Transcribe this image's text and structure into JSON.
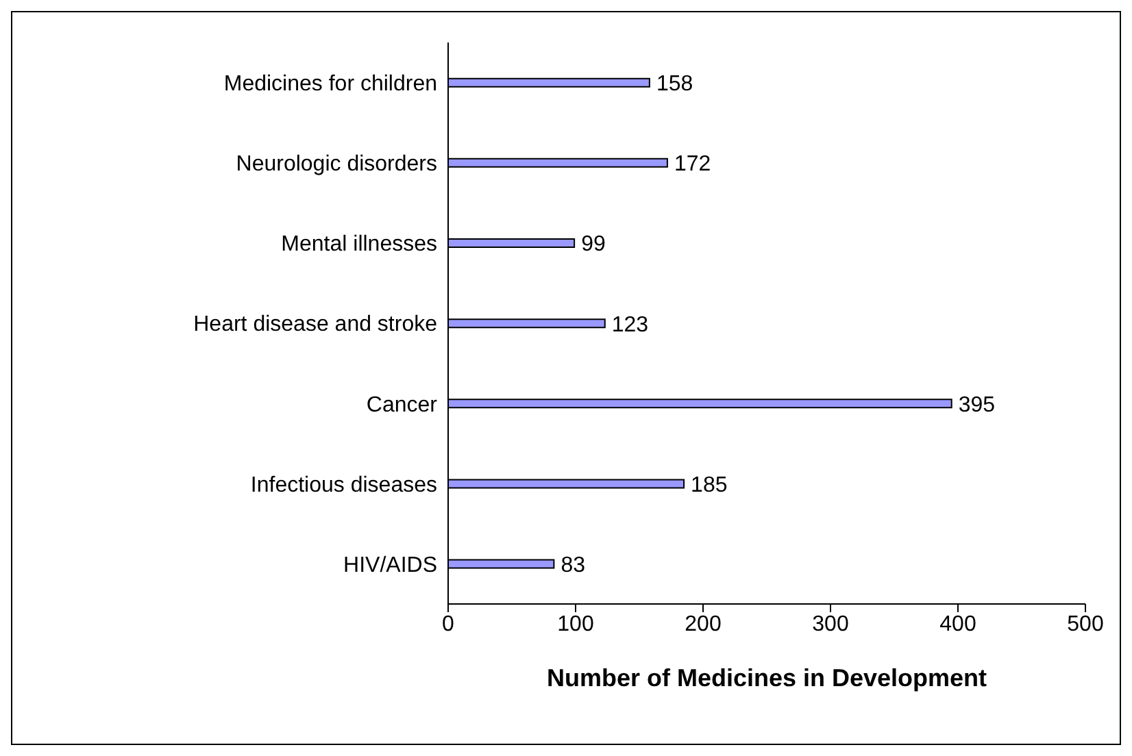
{
  "chart_data": {
    "type": "bar",
    "orientation": "horizontal",
    "xlabel": "Number of Medicines in Development",
    "categories": [
      "Medicines for children",
      "Neurologic disorders",
      "Mental illnesses",
      "Heart disease and stroke",
      "Cancer",
      "Infectious diseases",
      "HIV/AIDS"
    ],
    "values": [
      158,
      172,
      99,
      123,
      395,
      185,
      83
    ],
    "color": "#9999ff",
    "data_labels": true,
    "xlim": [
      0,
      500
    ],
    "xticks": [
      0,
      100,
      200,
      300,
      400,
      500
    ],
    "grid": false,
    "legend": false
  }
}
